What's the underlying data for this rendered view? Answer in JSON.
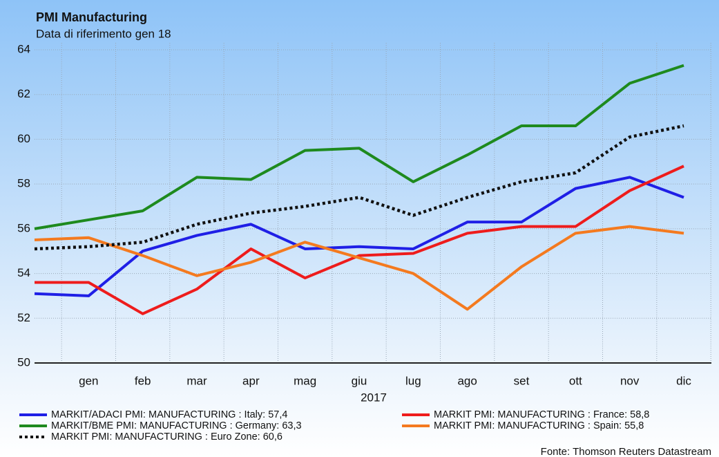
{
  "chart_data": {
    "type": "line",
    "title": "PMI Manufacturing",
    "subtitle": "Data di riferimento gen 18",
    "x_label": "2017",
    "source": "Fonte: Thomson Reuters Datastream",
    "categories": [
      null,
      "gen",
      "feb",
      "mar",
      "apr",
      "mag",
      "giu",
      "lug",
      "ago",
      "set",
      "ott",
      "nov",
      "dic"
    ],
    "ylim": [
      50,
      64
    ],
    "yticks": [
      50,
      52,
      54,
      56,
      58,
      60,
      62,
      64
    ],
    "grid": true,
    "series": [
      {
        "name": "MARKIT/ADACI PMI: MANUFACTURING : Italy: 57,4",
        "color": "#1f1fe6",
        "dash": "solid",
        "values": [
          53.1,
          53.0,
          55.0,
          55.7,
          56.2,
          55.1,
          55.2,
          55.1,
          56.3,
          56.3,
          57.8,
          58.3,
          57.4
        ]
      },
      {
        "name": "MARKIT PMI: MANUFACTURING : France: 58,8",
        "color": "#ee1c1c",
        "dash": "solid",
        "values": [
          53.6,
          53.6,
          52.2,
          53.3,
          55.1,
          53.8,
          54.8,
          54.9,
          55.8,
          56.1,
          56.1,
          57.7,
          58.8
        ]
      },
      {
        "name": "MARKIT/BME PMI: MANUFACTURING : Germany: 63,3",
        "color": "#1e8a1e",
        "dash": "solid",
        "values": [
          56.0,
          56.4,
          56.8,
          58.3,
          58.2,
          59.5,
          59.6,
          58.1,
          59.3,
          60.6,
          60.6,
          62.5,
          63.3
        ]
      },
      {
        "name": "MARKIT PMI: MANUFACTURING : Spain: 55,8",
        "color": "#f47a1f",
        "dash": "solid",
        "values": [
          55.5,
          55.6,
          54.8,
          53.9,
          54.5,
          55.4,
          54.7,
          54.0,
          52.4,
          54.3,
          55.8,
          56.1,
          55.8
        ]
      },
      {
        "name": "MARKIT PMI: MANUFACTURING : Euro Zone: 60,6",
        "color": "#111111",
        "dash": "dotted",
        "values": [
          55.1,
          55.2,
          55.4,
          56.2,
          56.7,
          57.0,
          57.4,
          56.6,
          57.4,
          58.1,
          58.5,
          60.1,
          60.6
        ]
      }
    ]
  }
}
